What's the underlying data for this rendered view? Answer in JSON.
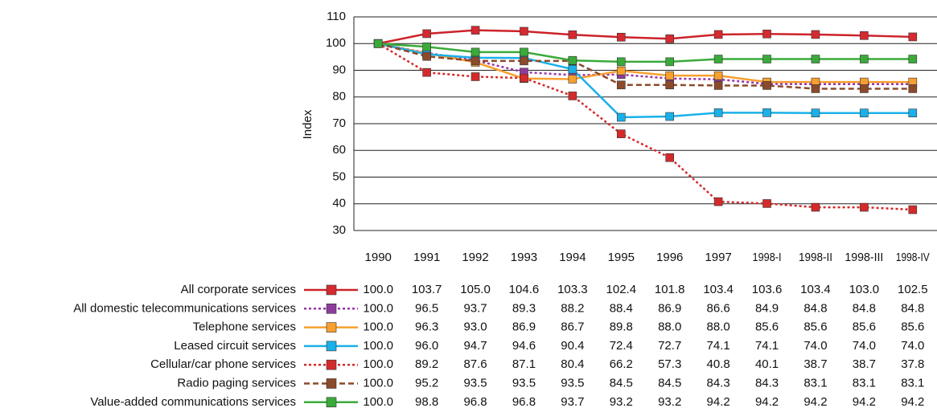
{
  "chart_data": {
    "type": "line",
    "y_label": "Index",
    "categories": [
      "1990",
      "1991",
      "1992",
      "1993",
      "1994",
      "1995",
      "1996",
      "1997",
      "1998-I",
      "1998-II",
      "1998-III",
      "1998-IV"
    ],
    "ylim": [
      30,
      110
    ],
    "yticks": [
      30,
      40,
      50,
      60,
      70,
      80,
      90,
      100,
      110
    ],
    "grid": true,
    "series": [
      {
        "name": "All corporate services",
        "color": "#cc2229",
        "marker_color": "#d42a30",
        "dash": "solid",
        "values": [
          100,
          103.7,
          105,
          104.6,
          103.3,
          102.4,
          101.8,
          103.4,
          103.6,
          103.4,
          103,
          102.5
        ],
        "value_labels": [
          "100.0",
          "103.7",
          "105.0",
          "104.6",
          "103.3",
          "102.4",
          "101.8",
          "103.4",
          "103.6",
          "103.4",
          "103.0",
          "102.5"
        ]
      },
      {
        "name": "All domestic telecommunications  services",
        "color": "#9933aa",
        "marker_color": "#8e3c9c",
        "dash": "dotted",
        "values": [
          100,
          96.5,
          93.7,
          89.3,
          88.2,
          88.4,
          86.9,
          86.6,
          84.9,
          84.8,
          84.8,
          84.8
        ],
        "value_labels": [
          "100.0",
          "96.5",
          "93.7",
          "89.3",
          "88.2",
          "88.4",
          "86.9",
          "86.6",
          "84.9",
          "84.8",
          "84.8",
          "84.8"
        ]
      },
      {
        "name": "Telephone services",
        "color": "#f7a030",
        "marker_color": "#f7a030",
        "dash": "solid",
        "values": [
          100,
          96.3,
          93,
          86.9,
          86.7,
          89.8,
          88,
          88,
          85.6,
          85.6,
          85.6,
          85.6
        ],
        "value_labels": [
          "100.0",
          "96.3",
          "93.0",
          "86.9",
          "86.7",
          "89.8",
          "88.0",
          "88.0",
          "85.6",
          "85.6",
          "85.6",
          "85.6"
        ]
      },
      {
        "name": "Leased circuit services",
        "color": "#1ab0e8",
        "marker_color": "#1ab0e8",
        "dash": "solid",
        "values": [
          100,
          96,
          94.7,
          94.6,
          90.4,
          72.4,
          72.7,
          74.1,
          74.1,
          74,
          74,
          74
        ],
        "value_labels": [
          "100.0",
          "96.0",
          "94.7",
          "94.6",
          "90.4",
          "72.4",
          "72.7",
          "74.1",
          "74.1",
          "74.0",
          "74.0",
          "74.0"
        ]
      },
      {
        "name": "Cellular/car phone services",
        "color": "#d42a2a",
        "marker_color": "#d42a2a",
        "dash": "dotted",
        "values": [
          100,
          89.2,
          87.6,
          87.1,
          80.4,
          66.2,
          57.3,
          40.8,
          40.1,
          38.7,
          38.7,
          37.8
        ],
        "value_labels": [
          "100.0",
          "89.2",
          "87.6",
          "87.1",
          "80.4",
          "66.2",
          "57.3",
          "40.8",
          "40.1",
          "38.7",
          "38.7",
          "37.8"
        ]
      },
      {
        "name": "Radio paging services",
        "color": "#8b4a2a",
        "marker_color": "#8b4a2a",
        "dash": "dashed",
        "values": [
          100,
          95.2,
          93.5,
          93.5,
          93.5,
          84.5,
          84.5,
          84.3,
          84.3,
          83.1,
          83.1,
          83.1
        ],
        "value_labels": [
          "100.0",
          "95.2",
          "93.5",
          "93.5",
          "93.5",
          "84.5",
          "84.5",
          "84.3",
          "84.3",
          "83.1",
          "83.1",
          "83.1"
        ]
      },
      {
        "name": "Value-added communications services",
        "color": "#3aaa3a",
        "marker_color": "#3aaa3a",
        "dash": "solid",
        "values": [
          100,
          98.8,
          96.8,
          96.8,
          93.7,
          93.2,
          93.2,
          94.2,
          94.2,
          94.2,
          94.2,
          94.2
        ],
        "value_labels": [
          "100.0",
          "98.8",
          "96.8",
          "96.8",
          "93.7",
          "93.2",
          "93.2",
          "94.2",
          "94.2",
          "94.2",
          "94.2",
          "94.2"
        ]
      }
    ]
  }
}
